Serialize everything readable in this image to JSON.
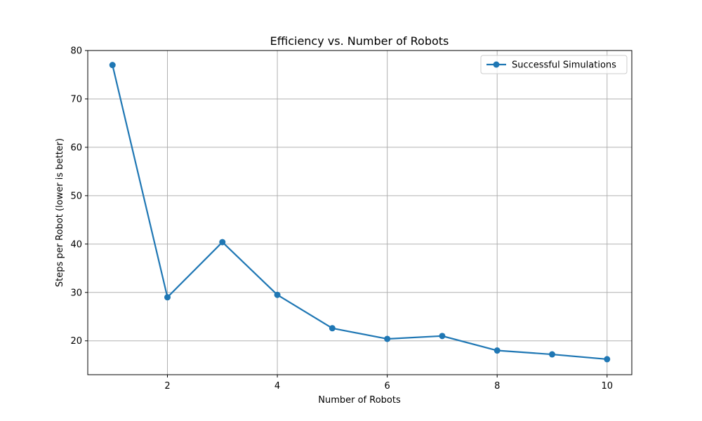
{
  "chart_data": {
    "type": "line",
    "title": "Efficiency vs. Number of Robots",
    "xlabel": "Number of Robots",
    "ylabel": "Steps per Robot (lower is better)",
    "xlim": [
      0.55,
      10.45
    ],
    "ylim": [
      13.0,
      80.0
    ],
    "xticks": [
      2,
      4,
      6,
      8,
      10
    ],
    "yticks": [
      20,
      30,
      40,
      50,
      60,
      70,
      80
    ],
    "grid": true,
    "legend_position": "top-right",
    "series": [
      {
        "name": "Successful Simulations",
        "color": "#1f77b4",
        "marker": "circle",
        "x": [
          1,
          2,
          3,
          4,
          5,
          6,
          7,
          8,
          9,
          10
        ],
        "y": [
          77.0,
          29.0,
          40.4,
          29.5,
          22.6,
          20.4,
          21.0,
          18.0,
          17.2,
          16.2
        ]
      }
    ]
  }
}
